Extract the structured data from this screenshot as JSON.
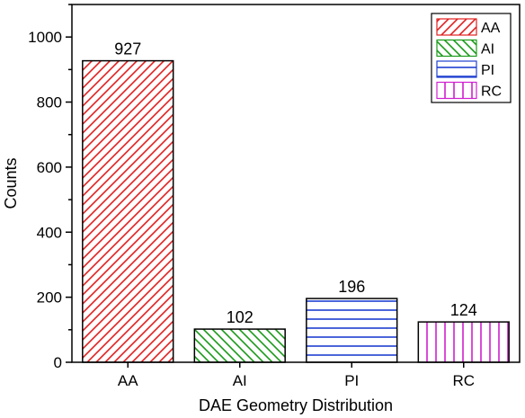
{
  "chart_data": {
    "type": "bar",
    "title": "",
    "xlabel": "DAE Geometry Distribution",
    "ylabel": "Counts",
    "ylim": [
      0,
      1100
    ],
    "yticks": [
      0,
      200,
      400,
      600,
      800,
      1000
    ],
    "grid": false,
    "legend": "top-right",
    "categories": [
      "AA",
      "AI",
      "PI",
      "RC"
    ],
    "values": [
      927,
      102,
      196,
      124
    ],
    "data_labels": [
      "927",
      "102",
      "196",
      "124"
    ],
    "series_style": [
      {
        "label": "AA",
        "color": "#e02020",
        "pattern": "diagonal-right"
      },
      {
        "label": "AI",
        "color": "#1a9a1a",
        "pattern": "diagonal-left"
      },
      {
        "label": "PI",
        "color": "#2040d0",
        "pattern": "horizontal"
      },
      {
        "label": "RC",
        "color": "#d020d0",
        "pattern": "vertical"
      }
    ]
  }
}
